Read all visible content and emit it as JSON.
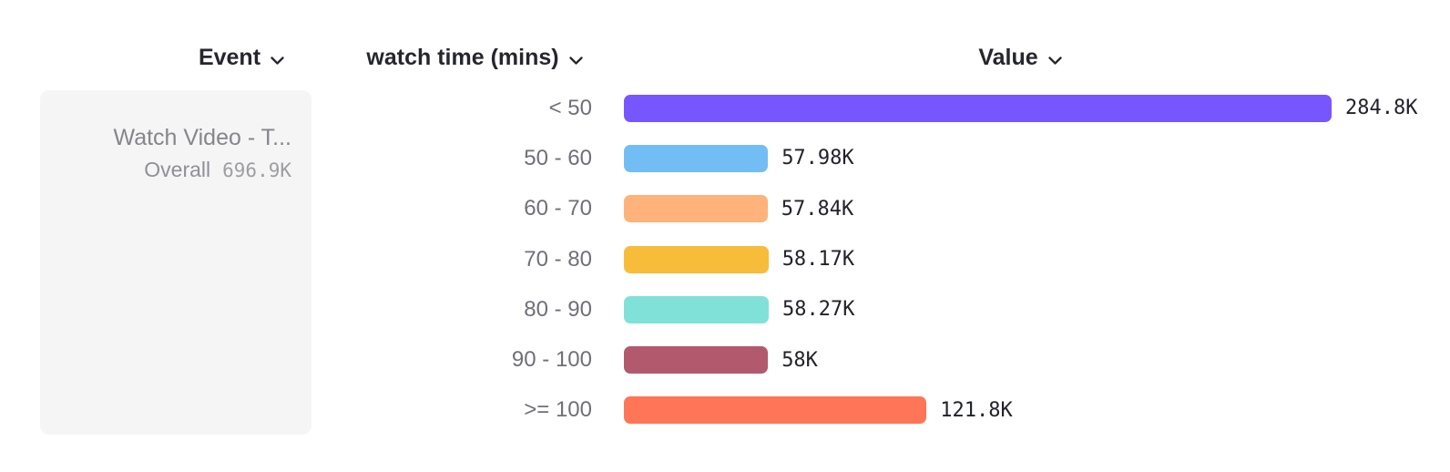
{
  "header": {
    "event_column": "Event",
    "breakdown_column": "watch time (mins)",
    "value_column": "Value"
  },
  "event_card": {
    "title": "Watch Video - T...",
    "overall_label": "Overall",
    "overall_value": "696.9K"
  },
  "chart_data": {
    "type": "bar",
    "orientation": "horizontal",
    "title": "",
    "xlabel": "Value",
    "ylabel": "watch time (mins)",
    "categories": [
      "< 50",
      "50 - 60",
      "60 - 70",
      "70 - 80",
      "80 - 90",
      "90 - 100",
      ">= 100"
    ],
    "values": [
      284800,
      57980,
      57840,
      58170,
      58270,
      58000,
      121800
    ],
    "value_labels": [
      "284.8K",
      "57.98K",
      "57.84K",
      "58.17K",
      "58.27K",
      "58K",
      "121.8K"
    ],
    "bar_colors": [
      "#7856FF",
      "#72BEF4",
      "#FFB27A",
      "#F8BC3B",
      "#80E1D9",
      "#B2596E",
      "#FF7557"
    ],
    "xlim": [
      0,
      284800
    ],
    "grid": false,
    "legend": false,
    "header_text_color": "#26262e",
    "category_text_color": "#6f6f78",
    "value_text_color": "#22222b"
  }
}
